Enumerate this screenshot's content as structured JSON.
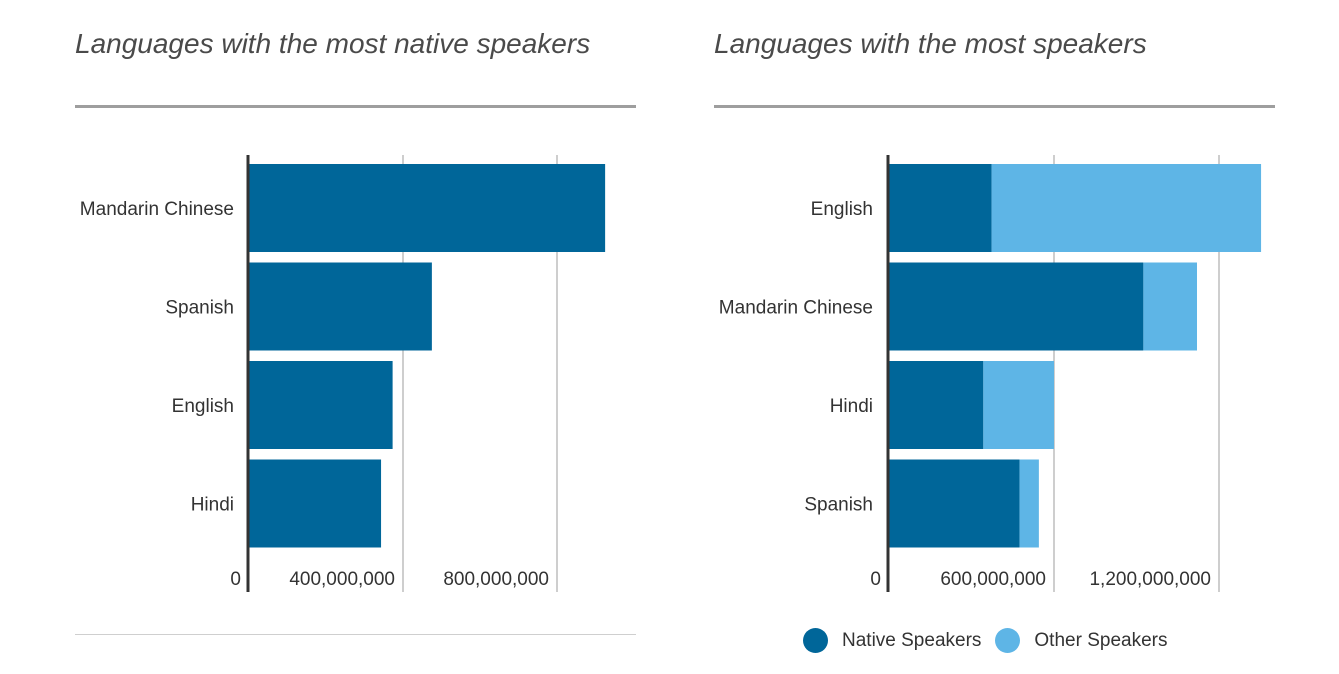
{
  "colors": {
    "native": "#006699",
    "other": "#5eb5e6",
    "grid": "#9e9e9e",
    "axis": "#333333"
  },
  "chart_data": [
    {
      "type": "bar",
      "orientation": "horizontal",
      "title": "Languages with the most native speakers",
      "categories": [
        "Mandarin Chinese",
        "Spanish",
        "English",
        "Hindi"
      ],
      "series": [
        {
          "values": [
            925000000,
            475000000,
            373000000,
            343000000
          ]
        }
      ],
      "xlim": [
        0,
        1200000000
      ],
      "xticks": [
        0,
        400000000,
        800000000
      ],
      "xtick_labels": [
        "0",
        "400,000,000",
        "800,000,000"
      ],
      "grid": true
    },
    {
      "type": "bar",
      "orientation": "horizontal",
      "stacked": true,
      "title": "Languages with the most speakers",
      "categories": [
        "English",
        "Mandarin Chinese",
        "Hindi",
        "Spanish"
      ],
      "series": [
        {
          "name": "Native Speakers",
          "values": [
            373000000,
            925000000,
            343000000,
            475000000
          ]
        },
        {
          "name": "Other Speakers",
          "values": [
            980000000,
            195000000,
            257000000,
            70000000
          ]
        }
      ],
      "xlim": [
        0,
        1400000000
      ],
      "xticks": [
        0,
        600000000,
        1200000000
      ],
      "xtick_labels": [
        "0",
        "600,000,000",
        "1,200,000,000"
      ],
      "grid": true,
      "legend": "bottom"
    }
  ]
}
